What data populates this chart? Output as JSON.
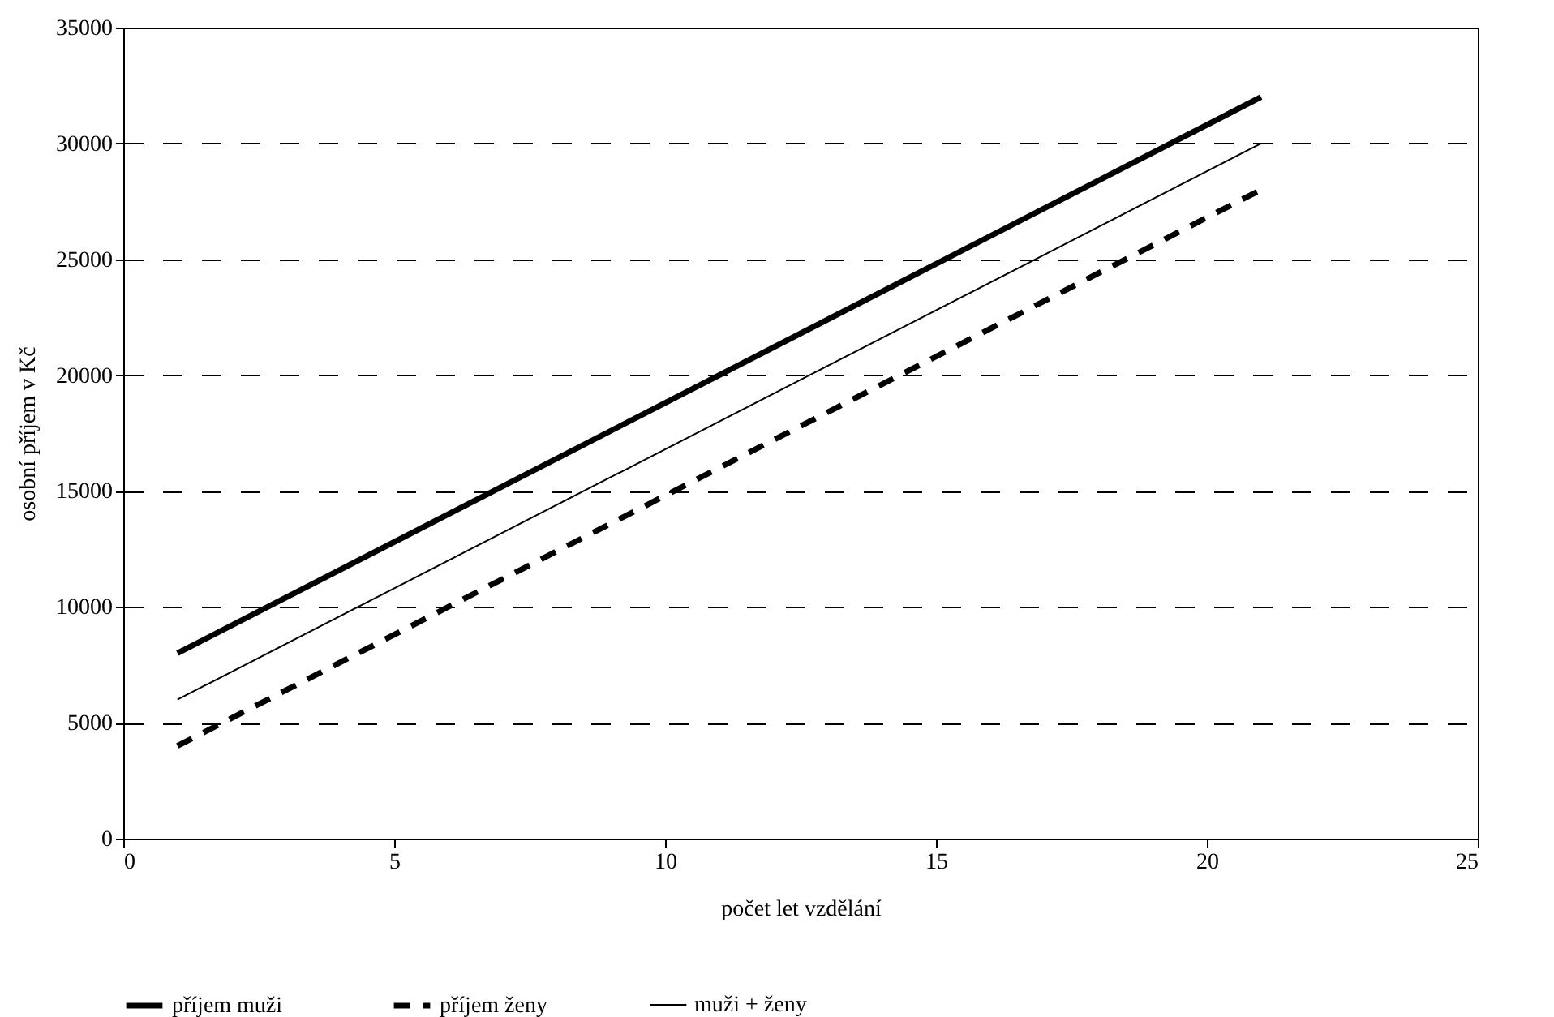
{
  "chart_data": {
    "type": "line",
    "xlabel": "počet let vzdělání",
    "ylabel": "osobní příjem v Kč",
    "x": [
      1,
      21
    ],
    "series": [
      {
        "name": "příjem muži",
        "color": "#000000",
        "values": [
          8000,
          32000
        ],
        "line_style": "solid"
      },
      {
        "name": "příjem ženy",
        "color": "#000000",
        "values": [
          4000,
          28000
        ],
        "line_style": "dashed"
      },
      {
        "name": "muži + ženy",
        "color": "#000000",
        "values": [
          6000,
          30000
        ],
        "line_style": "solid"
      }
    ],
    "xlim": [
      0,
      25
    ],
    "xticks": [
      0,
      5,
      10,
      15,
      20,
      25
    ],
    "ylim": [
      0,
      35000
    ],
    "yticks": [
      0,
      5000,
      10000,
      15000,
      20000,
      25000,
      30000,
      35000
    ],
    "grid": "y",
    "legend": "bottom",
    "marker": "none"
  }
}
